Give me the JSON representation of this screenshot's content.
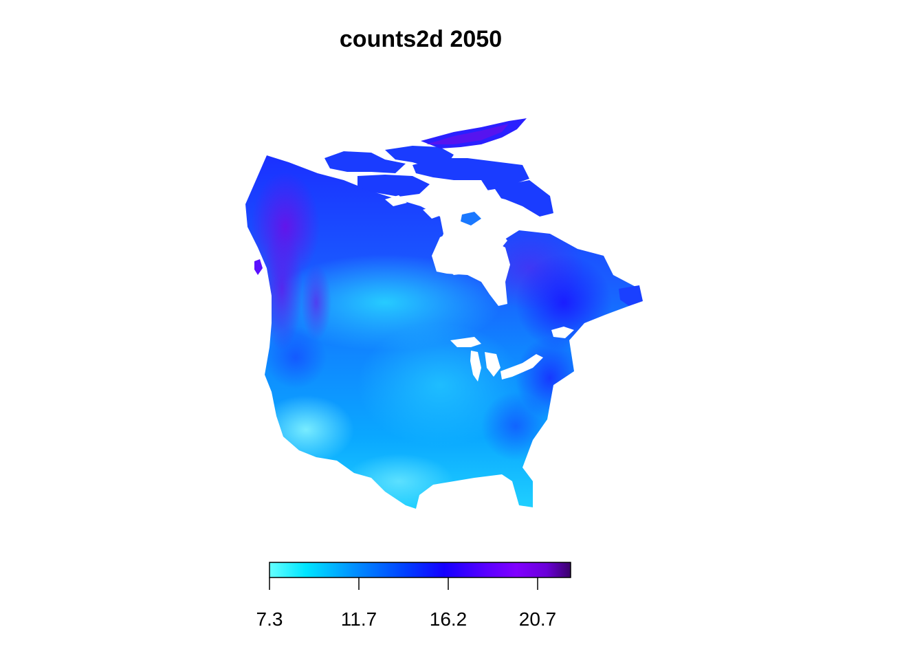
{
  "title": "counts2d 2050",
  "legend": {
    "ticks": [
      "7.3",
      "11.7",
      "16.2",
      "20.7"
    ],
    "colors": [
      "#66ffff",
      "#00e5ff",
      "#0090ff",
      "#0040ff",
      "#1400ff",
      "#5a00ff",
      "#8000ff",
      "#6a00d8",
      "#3a006a"
    ]
  }
}
